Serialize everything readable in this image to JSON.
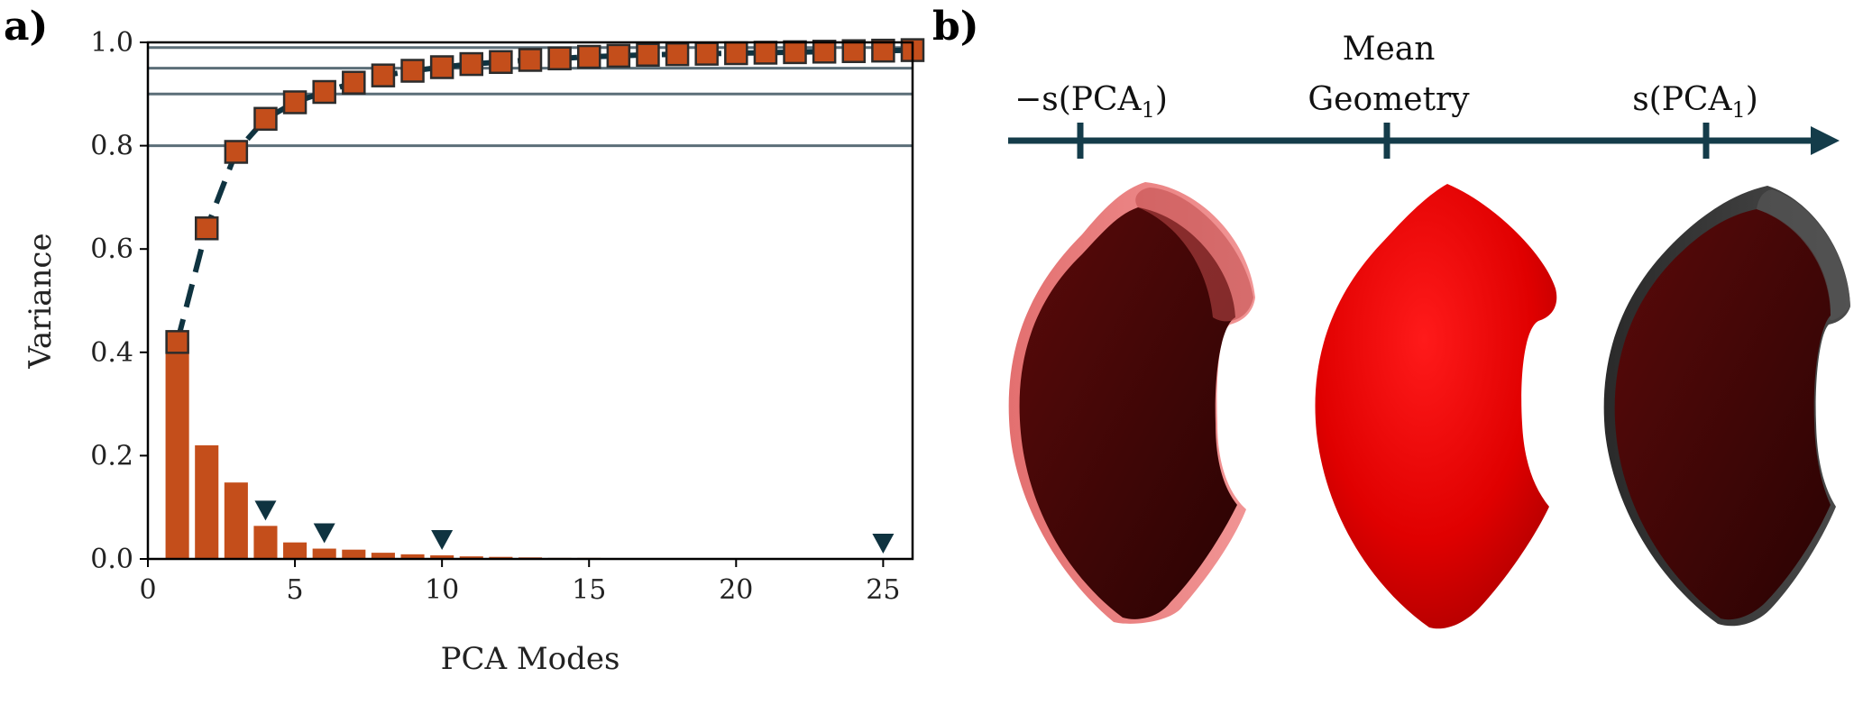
{
  "panels": {
    "a_label": "a)",
    "b_label": "b)"
  },
  "colors": {
    "bar": "#c44e1b",
    "cumulative_line": "#0f3340",
    "marker_fill": "#c44e1b",
    "marker_edge": "#2c2c2c",
    "threshold_line": "#5b6e78",
    "arrow": "#143c4a",
    "mean_shape": "#e00000",
    "variant_shape": "#4a0707"
  },
  "chart_data": {
    "type": "bar",
    "xlabel": "PCA Modes",
    "ylabel": "Variance",
    "xlim": [
      0,
      26
    ],
    "ylim": [
      0,
      1.0
    ],
    "xticks": [
      0,
      5,
      10,
      15,
      20,
      25
    ],
    "yticks": [
      0.0,
      0.2,
      0.4,
      0.6,
      0.8,
      1.0
    ],
    "xtick_labels": [
      "0",
      "5",
      "10",
      "15",
      "20",
      "25"
    ],
    "ytick_labels": [
      "0.0",
      "0.2",
      "0.4",
      "0.6",
      "0.8",
      "1.0"
    ],
    "grid": false,
    "threshold_lines": [
      0.8,
      0.9,
      0.95,
      0.99
    ],
    "series": [
      {
        "kind": "bar",
        "x": [
          1,
          2,
          3,
          4,
          5,
          6,
          7,
          8,
          9,
          10,
          11,
          12,
          13,
          14,
          15,
          16,
          17,
          18,
          19,
          20,
          21,
          22,
          23,
          24,
          25,
          26
        ],
        "values": [
          0.42,
          0.22,
          0.148,
          0.064,
          0.032,
          0.02,
          0.018,
          0.012,
          0.009,
          0.007,
          0.005,
          0.004,
          0.003,
          0.002,
          0.002,
          0.001,
          0.001,
          0.001,
          0.001,
          0.001,
          0.0,
          0.0,
          0.0,
          0.0,
          0.0,
          0.0
        ]
      },
      {
        "kind": "cumulative",
        "x": [
          1,
          2,
          3,
          4,
          5,
          6,
          7,
          8,
          9,
          10,
          11,
          12,
          13,
          14,
          15,
          16,
          17,
          18,
          19,
          20,
          21,
          22,
          23,
          24,
          25,
          26
        ],
        "values": [
          0.42,
          0.64,
          0.788,
          0.852,
          0.884,
          0.904,
          0.922,
          0.936,
          0.945,
          0.952,
          0.958,
          0.962,
          0.966,
          0.969,
          0.972,
          0.974,
          0.976,
          0.977,
          0.978,
          0.979,
          0.98,
          0.981,
          0.982,
          0.983,
          0.984,
          0.985
        ]
      }
    ],
    "selected_modes": [
      4,
      6,
      10,
      25
    ]
  },
  "shape_panel": {
    "minus_label": "−s(PCA",
    "minus_sub": "1",
    "minus_close": ")",
    "mean_line1": "Mean",
    "mean_line2": "Geometry",
    "plus_label": "s(PCA",
    "plus_sub": "1",
    "plus_close": ")"
  }
}
